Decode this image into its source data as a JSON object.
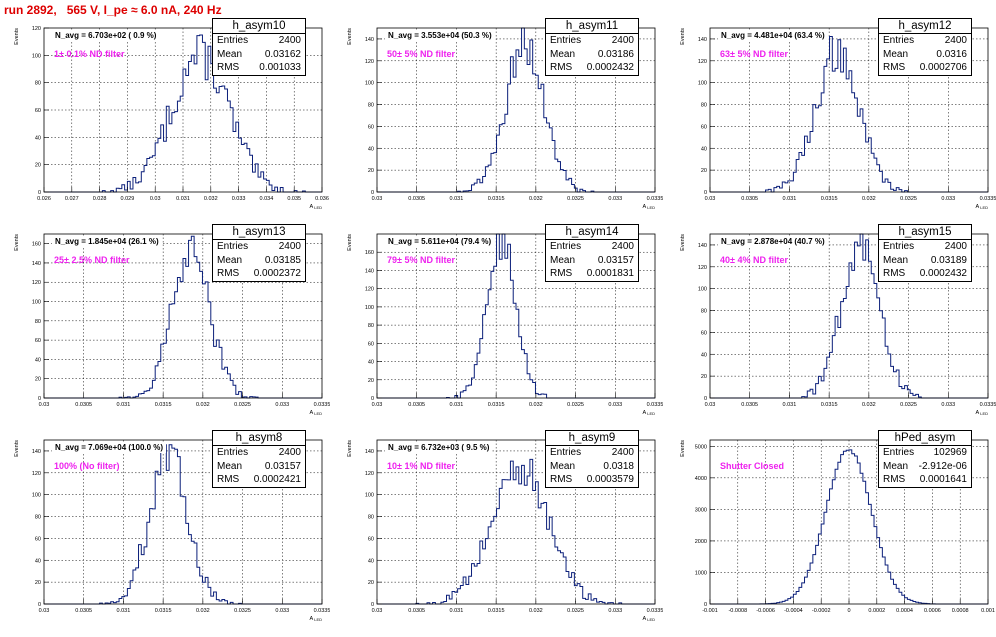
{
  "header": {
    "title": "run 2892,   565 V, I_pe ≈ 6.0 nA, 240 Hz"
  },
  "chart_data": [
    {
      "type": "histogram",
      "name": "h_asym10",
      "annotation": "N_avg = 6.703e+02 ( 0.9 %)",
      "filter": "1± 0.1% ND filter",
      "stats": {
        "Entries": "2400",
        "Mean": "0.03162",
        "RMS": "0.001033"
      },
      "ylabel": "Events",
      "xlabel": "A_LED",
      "xlim": [
        0.026,
        0.036
      ],
      "ylim": [
        0,
        120
      ],
      "xticks": [
        "0.026",
        "0.027",
        "0.028",
        "0.029",
        "0.03",
        "0.031",
        "0.032",
        "0.033",
        "0.034",
        "0.035",
        "0.036"
      ],
      "yticks": [
        0,
        20,
        40,
        60,
        80,
        100,
        120
      ],
      "dist": {
        "mean": 0.03162,
        "sigma": 0.001033,
        "peak": 100
      }
    },
    {
      "type": "histogram",
      "name": "h_asym11",
      "annotation": "N_avg = 3.553e+04 (50.3 %)",
      "filter": "50± 5% ND filter",
      "stats": {
        "Entries": "2400",
        "Mean": "0.03186",
        "RMS": "0.0002432"
      },
      "ylabel": "Events",
      "xlabel": "A_LED",
      "xlim": [
        0.03,
        0.0335
      ],
      "ylim": [
        0,
        150
      ],
      "xticks": [
        "0.03",
        "0.0305",
        "0.031",
        "0.0315",
        "0.032",
        "0.0325",
        "0.033",
        "0.0335"
      ],
      "yticks": [
        0,
        20,
        40,
        60,
        80,
        100,
        120,
        140
      ],
      "dist": {
        "mean": 0.03186,
        "sigma": 0.0002432,
        "peak": 135
      }
    },
    {
      "type": "histogram",
      "name": "h_asym12",
      "annotation": "N_avg = 4.481e+04 (63.4 %)",
      "filter": "63± 5% ND filter",
      "stats": {
        "Entries": "2400",
        "Mean": "0.0316",
        "RMS": "0.0002706"
      },
      "ylabel": "Events",
      "xlabel": "A_LED",
      "xlim": [
        0.03,
        0.0335
      ],
      "ylim": [
        0,
        150
      ],
      "xticks": [
        "0.03",
        "0.0305",
        "0.031",
        "0.0315",
        "0.032",
        "0.0325",
        "0.033",
        "0.0335"
      ],
      "yticks": [
        0,
        20,
        40,
        60,
        80,
        100,
        120,
        140
      ],
      "dist": {
        "mean": 0.0316,
        "sigma": 0.0002706,
        "peak": 130
      }
    },
    {
      "type": "histogram",
      "name": "h_asym13",
      "annotation": "N_avg = 1.845e+04 (26.1 %)",
      "filter": "25± 2.5% ND filter",
      "stats": {
        "Entries": "2400",
        "Mean": "0.03185",
        "RMS": "0.0002372"
      },
      "ylabel": "Events",
      "xlabel": "A_LED",
      "xlim": [
        0.03,
        0.0335
      ],
      "ylim": [
        0,
        170
      ],
      "xticks": [
        "0.03",
        "0.0305",
        "0.031",
        "0.0315",
        "0.032",
        "0.0325",
        "0.033",
        "0.0335"
      ],
      "yticks": [
        0,
        20,
        40,
        60,
        80,
        100,
        120,
        140,
        160
      ],
      "dist": {
        "mean": 0.03185,
        "sigma": 0.0002372,
        "peak": 150
      }
    },
    {
      "type": "histogram",
      "name": "h_asym14",
      "annotation": "N_avg = 5.611e+04 (79.4 %)",
      "filter": "79± 5% ND filter",
      "stats": {
        "Entries": "2400",
        "Mean": "0.03157",
        "RMS": "0.0001831"
      },
      "ylabel": "Events",
      "xlabel": "A_LED",
      "xlim": [
        0.03,
        0.0335
      ],
      "ylim": [
        0,
        180
      ],
      "xticks": [
        "0.03",
        "0.0305",
        "0.031",
        "0.0315",
        "0.032",
        "0.0325",
        "0.033",
        "0.0335"
      ],
      "yticks": [
        0,
        20,
        40,
        60,
        80,
        100,
        120,
        140,
        160
      ],
      "dist": {
        "mean": 0.03157,
        "sigma": 0.0001831,
        "peak": 170
      }
    },
    {
      "type": "histogram",
      "name": "h_asym15",
      "annotation": "N_avg = 2.878e+04 (40.7 %)",
      "filter": "40± 4% ND filter",
      "stats": {
        "Entries": "2400",
        "Mean": "0.03189",
        "RMS": "0.0002432"
      },
      "ylabel": "Events",
      "xlabel": "A_LED",
      "xlim": [
        0.03,
        0.0335
      ],
      "ylim": [
        0,
        150
      ],
      "xticks": [
        "0.03",
        "0.0305",
        "0.031",
        "0.0315",
        "0.032",
        "0.0325",
        "0.033",
        "0.0335"
      ],
      "yticks": [
        0,
        20,
        40,
        60,
        80,
        100,
        120,
        140
      ],
      "dist": {
        "mean": 0.03189,
        "sigma": 0.0002432,
        "peak": 138
      }
    },
    {
      "type": "histogram",
      "name": "h_asym8",
      "annotation": "N_avg = 7.069e+04 (100.0 %)",
      "filter": "100% (No filter)",
      "stats": {
        "Entries": "2400",
        "Mean": "0.03157",
        "RMS": "0.0002421"
      },
      "ylabel": "Events",
      "xlabel": "A_LED",
      "xlim": [
        0.03,
        0.0335
      ],
      "ylim": [
        0,
        150
      ],
      "xticks": [
        "0.03",
        "0.0305",
        "0.031",
        "0.0315",
        "0.032",
        "0.0325",
        "0.033",
        "0.0335"
      ],
      "yticks": [
        0,
        20,
        40,
        60,
        80,
        100,
        120,
        140
      ],
      "dist": {
        "mean": 0.03157,
        "sigma": 0.0002421,
        "peak": 135
      }
    },
    {
      "type": "histogram",
      "name": "h_asym9",
      "annotation": "N_avg = 6.732e+03 ( 9.5 %)",
      "filter": "10± 1% ND filter",
      "stats": {
        "Entries": "2400",
        "Mean": "0.0318",
        "RMS": "0.0003579"
      },
      "ylabel": "Events",
      "xlabel": "A_LED",
      "xlim": [
        0.03,
        0.0335
      ],
      "ylim": [
        0,
        150
      ],
      "xticks": [
        "0.03",
        "0.0305",
        "0.031",
        "0.0315",
        "0.032",
        "0.0325",
        "0.033",
        "0.0335"
      ],
      "yticks": [
        0,
        20,
        40,
        60,
        80,
        100,
        120,
        140
      ],
      "dist": {
        "mean": 0.0318,
        "sigma": 0.0003579,
        "peak": 125
      }
    },
    {
      "type": "histogram",
      "name": "hPed_asym",
      "annotation": "",
      "filter": "Shutter Closed",
      "stats": {
        "Entries": "102969",
        "Mean": "-2.912e-06",
        "RMS": "0.0001641"
      },
      "ylabel": "Events",
      "xlabel": "",
      "xlim": [
        -0.001,
        0.001
      ],
      "ylim": [
        0,
        5200
      ],
      "xticks": [
        "-0.001",
        "-0.0008",
        "-0.0006",
        "-0.0004",
        "-0.0002",
        "0",
        "0.0002",
        "0.0004",
        "0.0006",
        "0.0008",
        "0.001"
      ],
      "yticks": [
        0,
        1000,
        2000,
        3000,
        4000,
        5000
      ],
      "dist": {
        "mean": -2.912e-06,
        "sigma": 0.0001641,
        "peak": 4900
      }
    }
  ]
}
